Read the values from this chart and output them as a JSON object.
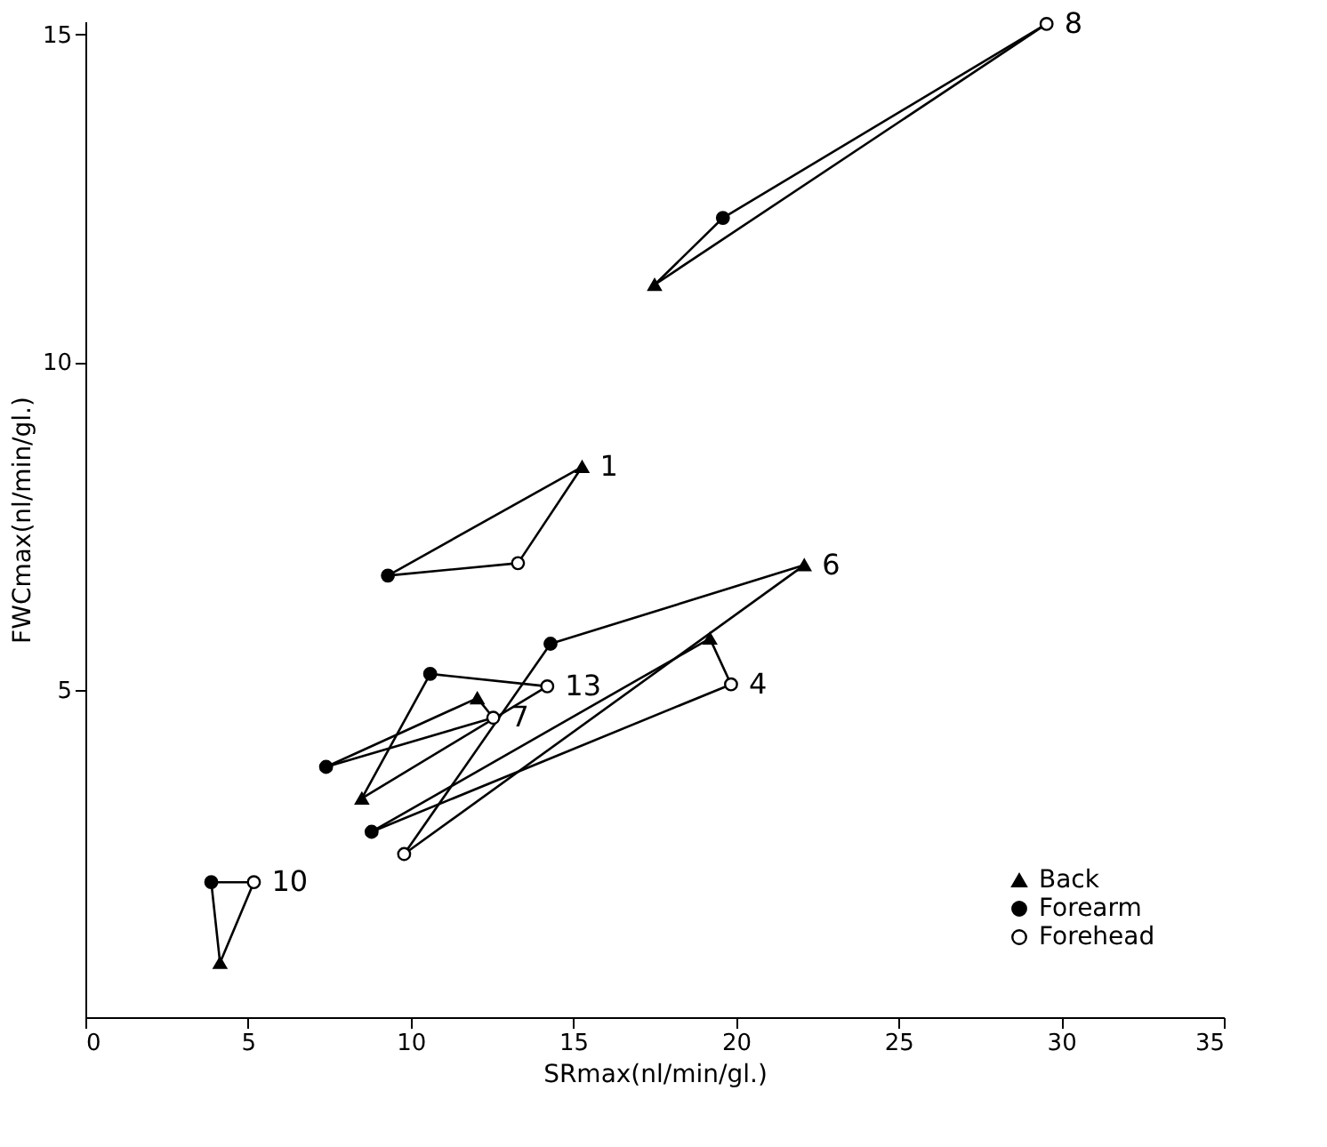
{
  "chart_data": {
    "type": "scatter",
    "xlabel": "SRmax(nl/min/gl.)",
    "ylabel": "FWCmax(nl/min/gl.)",
    "xlim": [
      0,
      35
    ],
    "xticks": [
      0,
      5,
      10,
      15,
      20,
      25,
      30,
      35
    ],
    "ylim": [
      0,
      15.2
    ],
    "yticks": [
      5,
      10,
      15
    ],
    "grid": false,
    "legend": "bottom right",
    "series": [
      {
        "name": "8",
        "type": "line",
        "color": "#000000",
        "marker": "none",
        "x": [
          17.5,
          19.6,
          29.55
        ],
        "values": [
          11.18,
          12.2,
          15.16
        ]
      },
      {
        "type": "line",
        "color": "#000000",
        "marker": "none",
        "x": [
          17.5,
          29.55
        ],
        "values": [
          11.18,
          15.16
        ]
      },
      {
        "name": "1",
        "type": "line",
        "color": "#000000",
        "marker": "none",
        "x": [
          9.3,
          13.3,
          15.27
        ],
        "values": [
          6.74,
          6.93,
          8.4
        ]
      },
      {
        "type": "line",
        "color": "#000000",
        "marker": "none",
        "x": [
          9.3,
          15.27
        ],
        "values": [
          6.74,
          8.4
        ]
      },
      {
        "name": "6",
        "type": "line",
        "color": "#000000",
        "marker": "none",
        "x": [
          9.8,
          14.3,
          22.1
        ],
        "values": [
          2.49,
          5.7,
          6.9
        ]
      },
      {
        "type": "line",
        "color": "#000000",
        "marker": "none",
        "x": [
          9.8,
          22.1
        ],
        "values": [
          2.49,
          6.9
        ]
      },
      {
        "name": "4",
        "type": "line",
        "color": "#000000",
        "marker": "none",
        "x": [
          8.8,
          19.2,
          19.85
        ],
        "values": [
          2.83,
          5.78,
          5.08
        ]
      },
      {
        "type": "line",
        "color": "#000000",
        "marker": "none",
        "x": [
          8.8,
          19.85
        ],
        "values": [
          2.83,
          5.08
        ]
      },
      {
        "name": "13",
        "type": "line",
        "color": "#000000",
        "marker": "none",
        "x": [
          8.5,
          10.6,
          14.2
        ],
        "values": [
          3.34,
          5.24,
          5.05
        ]
      },
      {
        "type": "line",
        "color": "#000000",
        "marker": "none",
        "x": [
          8.5,
          14.2
        ],
        "values": [
          3.34,
          5.05
        ]
      },
      {
        "name": "7",
        "type": "line",
        "color": "#000000",
        "marker": "none",
        "x": [
          7.4,
          12.05,
          12.54
        ],
        "values": [
          3.82,
          4.87,
          4.57
        ]
      },
      {
        "type": "line",
        "color": "#000000",
        "marker": "none",
        "x": [
          7.4,
          12.54
        ],
        "values": [
          3.82,
          4.57
        ]
      },
      {
        "name": "10",
        "type": "line",
        "color": "#000000",
        "marker": "none",
        "x": [
          3.87,
          4.14,
          5.18
        ],
        "values": [
          2.06,
          0.83,
          2.06
        ]
      },
      {
        "type": "line",
        "color": "#000000",
        "marker": "none",
        "x": [
          3.87,
          5.18
        ],
        "values": [
          2.06,
          2.06
        ]
      },
      {
        "name": "Back",
        "color": "#000000",
        "marker": "triangle",
        "x": [
          17.5,
          15.27,
          22.1,
          19.2,
          12.05,
          8.5,
          4.14
        ],
        "values": [
          11.18,
          8.4,
          6.9,
          5.78,
          4.87,
          3.34,
          0.83
        ]
      },
      {
        "name": "Forearm",
        "color": "#000000",
        "marker": "circle",
        "x": [
          19.6,
          9.3,
          14.3,
          10.6,
          7.4,
          8.8,
          3.87
        ],
        "values": [
          12.2,
          6.74,
          5.7,
          5.24,
          3.82,
          2.83,
          2.06
        ]
      },
      {
        "name": "Forehead",
        "color": "#000000",
        "marker": "circle",
        "x": [
          29.55,
          13.3,
          14.2,
          19.85,
          12.54,
          9.8,
          5.18
        ],
        "values": [
          15.16,
          6.93,
          5.05,
          5.08,
          4.57,
          2.49,
          2.06
        ]
      }
    ]
  }
}
